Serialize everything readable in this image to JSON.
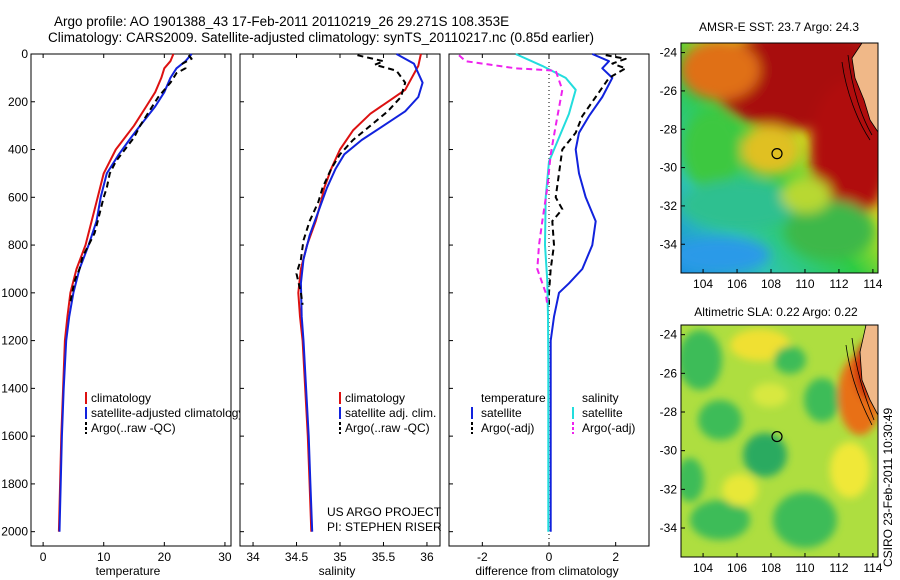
{
  "header": {
    "line1": "Argo profile: AO 1901388_43 17-Feb-2011 20110219_26 29.271S 108.353E",
    "line2": "Climatology: CARS2009. Satellite-adjusted climatology: synTS_20110217.nc (0.85d earlier)"
  },
  "colors": {
    "climatology": "#dd1111",
    "satellite": "#1122dd",
    "argo": "#000000",
    "salinity_satellite": "#22dddd",
    "salinity_argo": "#ee22ee"
  },
  "chart_data": [
    {
      "type": "line",
      "name": "temperature",
      "xlabel": "temperature",
      "ylabel": "",
      "xlim": [
        -2,
        31
      ],
      "ylim": [
        2060,
        0
      ],
      "x_ticks": [
        "0",
        "10",
        "20",
        "30"
      ],
      "y_ticks": [
        "0",
        "200",
        "400",
        "600",
        "800",
        "1000",
        "1200",
        "1400",
        "1600",
        "1800",
        "2000"
      ],
      "legend": [
        "climatology",
        "satellite-adjusted climatology",
        "Argo(..raw -QC)"
      ],
      "series": [
        {
          "name": "climatology",
          "color_key": "climatology",
          "style": "solid",
          "points": [
            [
              21.5,
              0
            ],
            [
              21,
              30
            ],
            [
              20,
              60
            ],
            [
              19.5,
              100
            ],
            [
              18.5,
              160
            ],
            [
              17,
              220
            ],
            [
              15,
              300
            ],
            [
              13.5,
              350
            ],
            [
              12,
              400
            ],
            [
              10,
              500
            ],
            [
              9,
              600
            ],
            [
              8,
              700
            ],
            [
              7,
              800
            ],
            [
              5.5,
              900
            ],
            [
              4.5,
              1000
            ],
            [
              4,
              1100
            ],
            [
              3.6,
              1200
            ],
            [
              3.3,
              1400
            ],
            [
              3,
              1600
            ],
            [
              2.8,
              1800
            ],
            [
              2.6,
              2000
            ]
          ]
        },
        {
          "name": "satellite-adjusted climatology",
          "color_key": "satellite",
          "style": "solid",
          "points": [
            [
              24.5,
              0
            ],
            [
              23.5,
              30
            ],
            [
              22,
              60
            ],
            [
              21,
              100
            ],
            [
              20,
              160
            ],
            [
              18.5,
              220
            ],
            [
              16,
              300
            ],
            [
              14.5,
              350
            ],
            [
              12.5,
              420
            ],
            [
              10.5,
              500
            ],
            [
              9.5,
              600
            ],
            [
              8.8,
              700
            ],
            [
              7.5,
              800
            ],
            [
              6,
              900
            ],
            [
              5,
              1000
            ],
            [
              4.3,
              1100
            ],
            [
              3.8,
              1200
            ],
            [
              3.4,
              1400
            ],
            [
              3.1,
              1600
            ],
            [
              2.9,
              1800
            ],
            [
              2.7,
              2000
            ]
          ]
        },
        {
          "name": "Argo(..raw -QC)",
          "color_key": "argo",
          "style": "dashed",
          "points": [
            [
              24,
              5
            ],
            [
              24.5,
              20
            ],
            [
              23,
              40
            ],
            [
              23.5,
              60
            ],
            [
              22,
              80
            ],
            [
              21,
              120
            ],
            [
              19,
              180
            ],
            [
              17.5,
              240
            ],
            [
              16,
              300
            ],
            [
              15,
              350
            ],
            [
              13.5,
              400
            ],
            [
              12,
              450
            ],
            [
              11,
              500
            ],
            [
              10.5,
              560
            ],
            [
              10,
              600
            ],
            [
              9.5,
              650
            ],
            [
              9,
              700
            ],
            [
              8.5,
              750
            ],
            [
              7.5,
              800
            ],
            [
              6.5,
              850
            ],
            [
              6,
              900
            ],
            [
              5.2,
              950
            ],
            [
              4.8,
              1000
            ],
            [
              4.4,
              1050
            ]
          ]
        }
      ]
    },
    {
      "type": "line",
      "name": "salinity",
      "xlabel": "salinity",
      "ylabel": "",
      "xlim": [
        33.85,
        36.15
      ],
      "ylim": [
        2060,
        0
      ],
      "x_ticks": [
        "34",
        "34.5",
        "35",
        "35.5",
        "36"
      ],
      "legend": [
        "climatology",
        "satellite adj. clim.",
        "Argo(..raw -QC)"
      ],
      "annotation": [
        "US ARGO PROJECT",
        "PI: STEPHEN RISER"
      ],
      "series": [
        {
          "name": "climatology",
          "color_key": "climatology",
          "style": "solid",
          "points": [
            [
              35.93,
              0
            ],
            [
              35.9,
              50
            ],
            [
              35.75,
              150
            ],
            [
              35.55,
              200
            ],
            [
              35.35,
              250
            ],
            [
              35.15,
              320
            ],
            [
              35.0,
              400
            ],
            [
              34.9,
              480
            ],
            [
              34.82,
              560
            ],
            [
              34.78,
              620
            ],
            [
              34.72,
              700
            ],
            [
              34.62,
              800
            ],
            [
              34.55,
              900
            ],
            [
              34.52,
              1000
            ],
            [
              34.54,
              1100
            ],
            [
              34.57,
              1200
            ],
            [
              34.6,
              1400
            ],
            [
              34.63,
              1600
            ],
            [
              34.65,
              1800
            ],
            [
              34.67,
              2000
            ]
          ]
        },
        {
          "name": "satellite adj. clim.",
          "color_key": "satellite",
          "style": "solid",
          "points": [
            [
              35.65,
              0
            ],
            [
              35.85,
              40
            ],
            [
              35.95,
              120
            ],
            [
              35.9,
              180
            ],
            [
              35.75,
              240
            ],
            [
              35.5,
              300
            ],
            [
              35.25,
              360
            ],
            [
              35.05,
              420
            ],
            [
              34.95,
              480
            ],
            [
              34.85,
              560
            ],
            [
              34.75,
              660
            ],
            [
              34.65,
              760
            ],
            [
              34.58,
              860
            ],
            [
              34.55,
              960
            ],
            [
              34.56,
              1100
            ],
            [
              34.58,
              1200
            ],
            [
              34.61,
              1400
            ],
            [
              34.64,
              1600
            ],
            [
              34.66,
              1800
            ],
            [
              34.68,
              2000
            ]
          ]
        },
        {
          "name": "Argo(..raw -QC)",
          "color_key": "argo",
          "style": "dashed",
          "points": [
            [
              35.2,
              5
            ],
            [
              35.5,
              30
            ],
            [
              35.4,
              45
            ],
            [
              35.65,
              70
            ],
            [
              35.75,
              120
            ],
            [
              35.7,
              180
            ],
            [
              35.55,
              240
            ],
            [
              35.35,
              300
            ],
            [
              35.15,
              360
            ],
            [
              35.0,
              420
            ],
            [
              34.9,
              480
            ],
            [
              34.8,
              560
            ],
            [
              34.75,
              620
            ],
            [
              34.65,
              700
            ],
            [
              34.58,
              780
            ],
            [
              34.55,
              860
            ],
            [
              34.5,
              920
            ],
            [
              34.55,
              1000
            ],
            [
              34.57,
              1050
            ]
          ]
        }
      ]
    },
    {
      "type": "line",
      "name": "difference",
      "xlabel": "difference from climatology",
      "ylabel": "",
      "xlim": [
        -3,
        3
      ],
      "ylim": [
        2060,
        0
      ],
      "x_ticks": [
        "-2",
        "0",
        "2"
      ],
      "legend_groups": [
        {
          "title": "temperature",
          "entries": [
            "satellite",
            "Argo(-adj)"
          ]
        },
        {
          "title": "salinity",
          "entries": [
            "satellite",
            "Argo(-adj)"
          ]
        }
      ],
      "series": [
        {
          "name": "temperature satellite",
          "color_key": "satellite",
          "style": "solid",
          "points": [
            [
              1.3,
              0
            ],
            [
              1.8,
              30
            ],
            [
              1.6,
              60
            ],
            [
              1.9,
              100
            ],
            [
              1.6,
              180
            ],
            [
              1.2,
              260
            ],
            [
              0.9,
              330
            ],
            [
              0.8,
              400
            ],
            [
              0.9,
              500
            ],
            [
              1.1,
              600
            ],
            [
              1.4,
              700
            ],
            [
              1.3,
              800
            ],
            [
              1.0,
              900
            ],
            [
              0.6,
              960
            ],
            [
              0.3,
              1000
            ],
            [
              0.15,
              1100
            ],
            [
              0.05,
              1200
            ],
            [
              0.05,
              1400
            ],
            [
              0.05,
              1600
            ],
            [
              0.05,
              1800
            ],
            [
              0.05,
              2000
            ]
          ]
        },
        {
          "name": "temperature Argo(-adj)",
          "color_key": "argo",
          "style": "dashed",
          "points": [
            [
              1.7,
              5
            ],
            [
              2.3,
              20
            ],
            [
              1.9,
              40
            ],
            [
              2.3,
              60
            ],
            [
              1.8,
              100
            ],
            [
              1.4,
              180
            ],
            [
              1.0,
              260
            ],
            [
              0.8,
              330
            ],
            [
              0.4,
              400
            ],
            [
              0.3,
              500
            ],
            [
              0.2,
              600
            ],
            [
              0.4,
              650
            ],
            [
              0.1,
              700
            ],
            [
              0.15,
              800
            ],
            [
              0.05,
              900
            ],
            [
              0.0,
              1000
            ],
            [
              0.0,
              1050
            ]
          ]
        },
        {
          "name": "salinity satellite",
          "color_key": "salinity_satellite",
          "style": "solid",
          "points": [
            [
              -1.0,
              0
            ],
            [
              -0.2,
              50
            ],
            [
              0.5,
              100
            ],
            [
              0.8,
              150
            ],
            [
              0.6,
              250
            ],
            [
              0.3,
              350
            ],
            [
              0.0,
              450
            ],
            [
              -0.1,
              600
            ],
            [
              -0.12,
              800
            ],
            [
              -0.05,
              950
            ],
            [
              -0.03,
              1100
            ],
            [
              -0.02,
              1300
            ],
            [
              -0.02,
              1600
            ],
            [
              -0.02,
              1800
            ],
            [
              -0.02,
              2000
            ]
          ]
        },
        {
          "name": "salinity Argo(-adj)",
          "color_key": "salinity_argo",
          "style": "dashed",
          "points": [
            [
              -2.7,
              5
            ],
            [
              -2.5,
              30
            ],
            [
              -1.0,
              60
            ],
            [
              0.2,
              70
            ],
            [
              0.4,
              150
            ],
            [
              0.2,
              300
            ],
            [
              0.05,
              420
            ],
            [
              -0.05,
              560
            ],
            [
              -0.2,
              700
            ],
            [
              -0.3,
              800
            ],
            [
              -0.35,
              900
            ],
            [
              -0.1,
              1000
            ],
            [
              -0.05,
              1050
            ]
          ]
        }
      ]
    },
    {
      "type": "heatmap",
      "name": "sst_map",
      "title": "AMSR-E SST: 23.7 Argo: 24.3",
      "x_ticks": [
        "104",
        "106",
        "108",
        "110",
        "112",
        "114"
      ],
      "y_ticks": [
        "-24",
        "-26",
        "-28",
        "-30",
        "-32",
        "-34"
      ],
      "xlim": [
        102.7,
        114.3
      ],
      "ylim": [
        -35.5,
        -23.5
      ],
      "marker": {
        "lon": 108.353,
        "lat": -29.271
      }
    },
    {
      "type": "heatmap",
      "name": "sla_map",
      "title": "Altimetric SLA: 0.22 Argo: 0.22",
      "x_ticks": [
        "104",
        "106",
        "108",
        "110",
        "112",
        "114"
      ],
      "y_ticks": [
        "-24",
        "-26",
        "-28",
        "-30",
        "-32",
        "-34"
      ],
      "xlim": [
        102.7,
        114.3
      ],
      "ylim": [
        -35.5,
        -23.5
      ],
      "marker": {
        "lon": 108.353,
        "lat": -29.271
      }
    }
  ],
  "side_label": "CSIRO 23-Feb-2011 10:30:49"
}
